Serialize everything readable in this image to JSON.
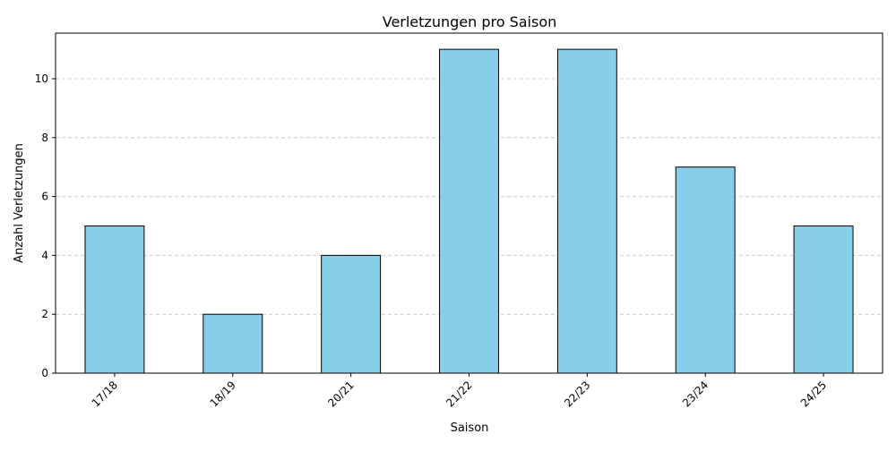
{
  "chart_data": {
    "type": "bar",
    "title": "Verletzungen pro Saison",
    "xlabel": "Saison",
    "ylabel": "Anzahl Verletzungen",
    "categories": [
      "17/18",
      "18/19",
      "20/21",
      "21/22",
      "22/23",
      "23/24",
      "24/25"
    ],
    "values": [
      5,
      2,
      4,
      11,
      11,
      7,
      5
    ],
    "ylim": [
      0,
      11.55
    ],
    "yticks": [
      0,
      2,
      4,
      6,
      8,
      10
    ],
    "grid": "y-dashed",
    "legend": "none",
    "bar_color": "#87ceeb",
    "edge_color": "#000000",
    "grid_color": "#cccccc"
  }
}
